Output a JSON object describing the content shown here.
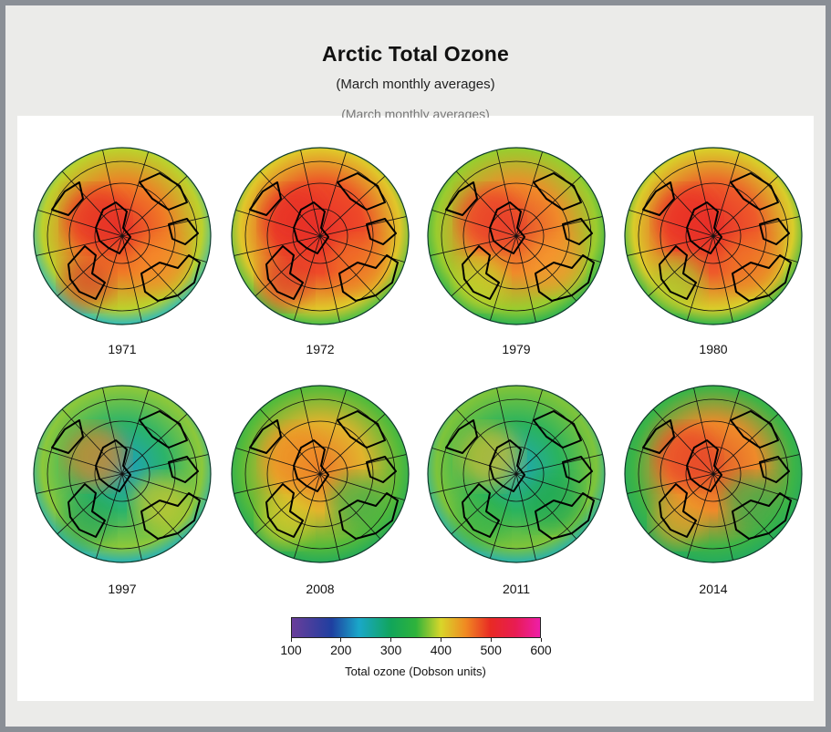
{
  "title": "Arctic Total Ozone",
  "subtitle": "(March monthly averages)",
  "panels": [
    {
      "year": "1971",
      "polar": "#e8342a",
      "mid": "#f07a26",
      "outer": "#bcd12c",
      "rim": "#23b9c8",
      "spots": [
        "#e52b27",
        "#f58d2c",
        "#d9442c"
      ]
    },
    {
      "year": "1972",
      "polar": "#e8302a",
      "mid": "#ee4a28",
      "outer": "#e0c72a",
      "rim": "#3cbf4a",
      "spots": [
        "#e62d28",
        "#f07a26",
        "#df3a2a"
      ]
    },
    {
      "year": "1979",
      "polar": "#e84a2c",
      "mid": "#f08a2a",
      "outer": "#9acc2e",
      "rim": "#22b055",
      "spots": [
        "#e8352a",
        "#f59a2d",
        "#c5d12b"
      ]
    },
    {
      "year": "1980",
      "polar": "#e8302a",
      "mid": "#ee5a2a",
      "outer": "#d9cd2a",
      "rim": "#22b34e",
      "spots": [
        "#e82c28",
        "#f07c28",
        "#a6cc2e"
      ]
    },
    {
      "year": "1997",
      "polar": "#1a9fc4",
      "mid": "#2bb36a",
      "outer": "#8cc83a",
      "rim": "#1eb0c2",
      "spots": [
        "#e88428",
        "#d6c92c",
        "#2ca759"
      ]
    },
    {
      "year": "2008",
      "polar": "#ee7a2a",
      "mid": "#e2b32c",
      "outer": "#55bb3a",
      "rim": "#22aa5c",
      "spots": [
        "#f08a28",
        "#34b04c",
        "#d7cb2c"
      ]
    },
    {
      "year": "2011",
      "polar": "#1ea7b8",
      "mid": "#2ab35e",
      "outer": "#7ec43a",
      "rim": "#20b0b8",
      "spots": [
        "#dcbe2c",
        "#22a852",
        "#38b448"
      ]
    },
    {
      "year": "2014",
      "polar": "#e45a2a",
      "mid": "#ef8a2a",
      "outer": "#3db446",
      "rim": "#22aa60",
      "spots": [
        "#e8402a",
        "#2eb050",
        "#e9a02a"
      ]
    }
  ],
  "colorbar": {
    "min": 100,
    "max": 600,
    "ticks": [
      "100",
      "200",
      "300",
      "400",
      "500",
      "600"
    ],
    "label": "Total ozone (Dobson units)"
  }
}
